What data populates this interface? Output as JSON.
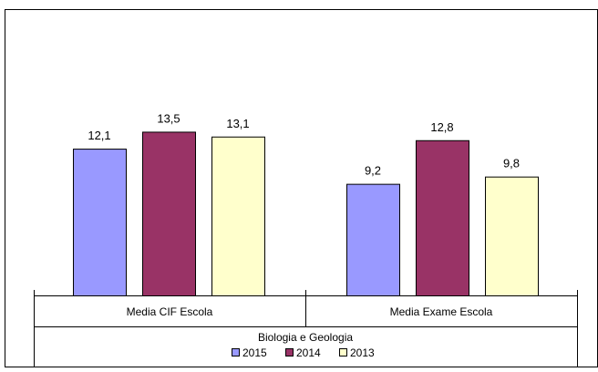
{
  "chart_data": {
    "type": "bar",
    "categories": [
      "Media CIF Escola",
      "Media Exame Escola"
    ],
    "group_label": "Biologia e Geologia",
    "series": [
      {
        "name": "2015",
        "values": [
          12.1,
          9.2
        ],
        "color": "#9999ff"
      },
      {
        "name": "2014",
        "values": [
          13.5,
          12.8
        ],
        "color": "#993366"
      },
      {
        "name": "2013",
        "values": [
          13.1,
          9.8
        ],
        "color": "#ffffcc"
      }
    ],
    "value_labels": [
      [
        "12,1",
        "9,2"
      ],
      [
        "13,5",
        "12,8"
      ],
      [
        "13,1",
        "9,8"
      ]
    ],
    "ylim": [
      0,
      20
    ],
    "grid": false,
    "legend_position": "bottom"
  }
}
